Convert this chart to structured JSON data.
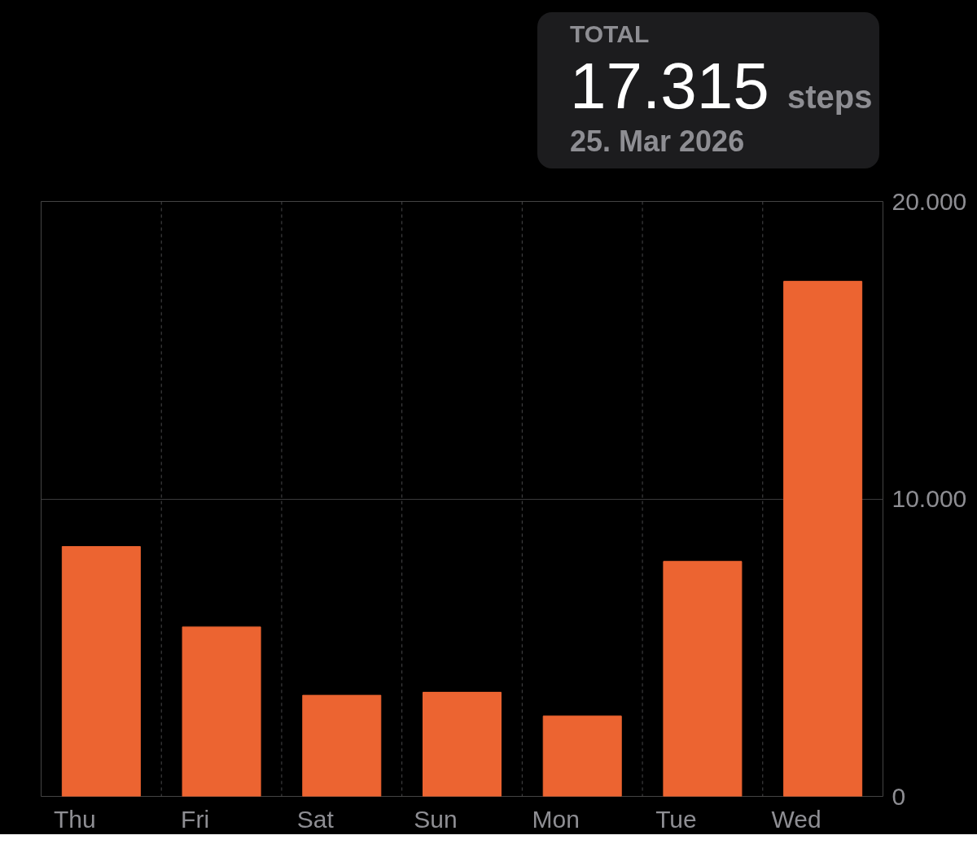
{
  "chart_data": {
    "type": "bar",
    "categories": [
      "Thu",
      "Fri",
      "Sat",
      "Sun",
      "Mon",
      "Tue",
      "Wed"
    ],
    "values": [
      8400,
      5700,
      3400,
      3500,
      2700,
      7900,
      17315
    ],
    "color": "#ec6431",
    "ylim": [
      0,
      20000
    ],
    "yticks": [
      0,
      {
        "value": 10000,
        "label": "10.000"
      },
      {
        "value": 20000,
        "label": "20.000"
      }
    ],
    "grid": true,
    "annotations": [
      "TOTAL",
      "17.315 steps",
      "25. Mar 2026"
    ]
  }
}
